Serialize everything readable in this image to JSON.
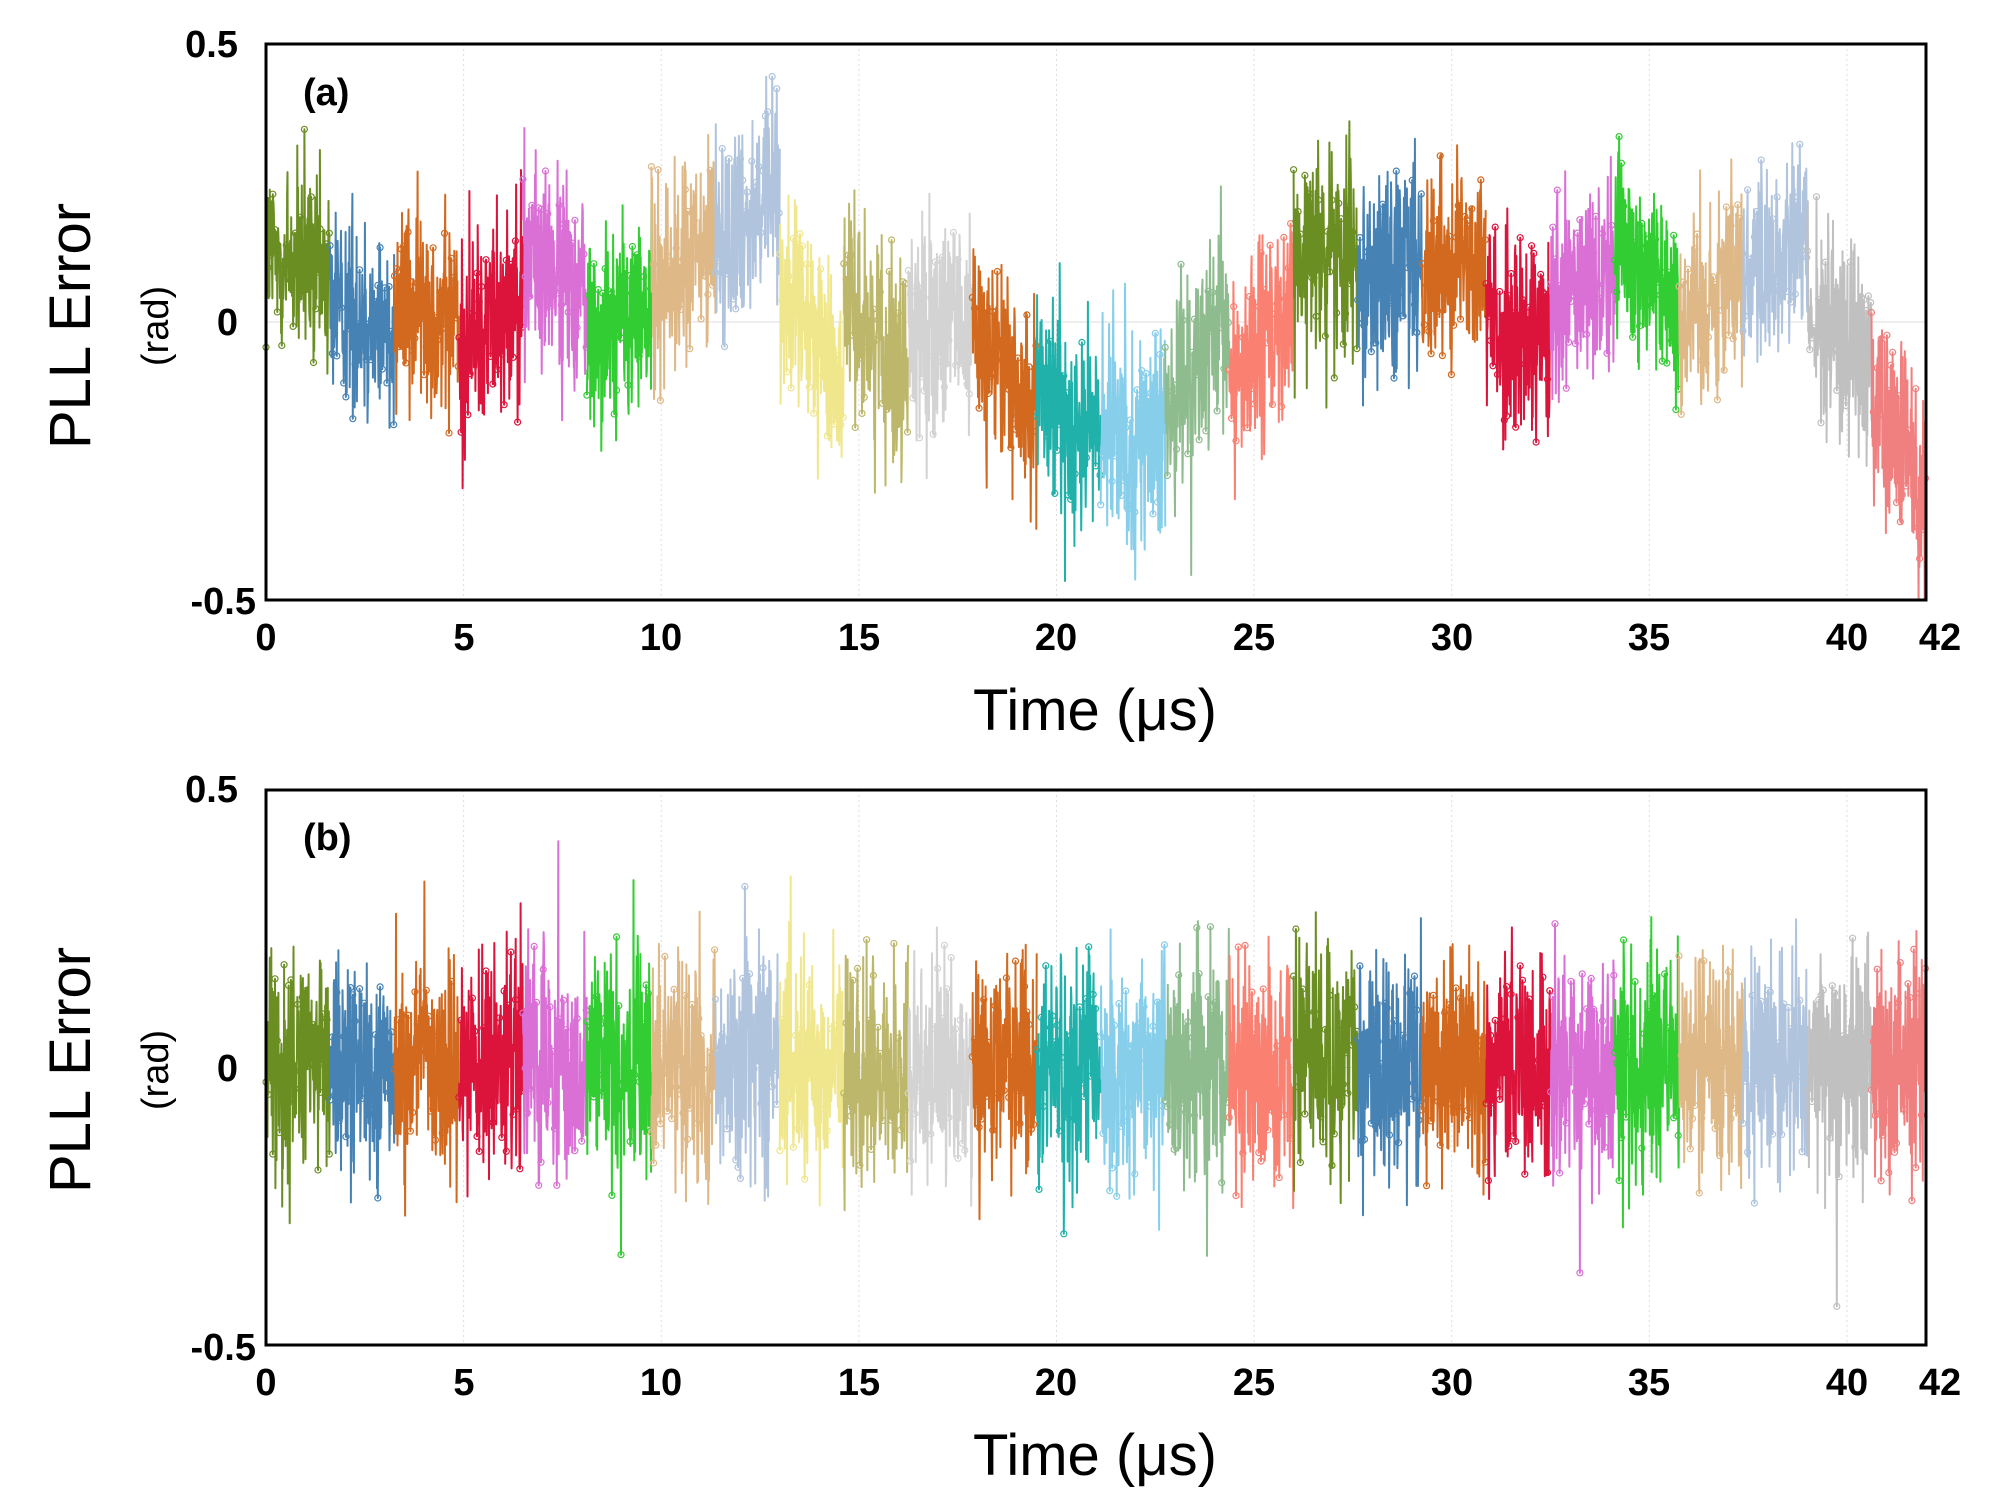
{
  "chart_data": [
    {
      "type": "line",
      "panel_label": "(a)",
      "xlabel": "Time (μs)",
      "ylabel": "PLL Error",
      "ylabel_unit": "(rad)",
      "xlim": [
        0,
        42
      ],
      "ylim": [
        -0.5,
        0.5
      ],
      "x_ticks": [
        0,
        5,
        10,
        15,
        20,
        25,
        30,
        35,
        40,
        42
      ],
      "x_tick_labels": [
        "0",
        "5",
        "10",
        "15",
        "20",
        "25",
        "30",
        "35",
        "40",
        "42"
      ],
      "y_ticks": [
        -0.5,
        0,
        0.5
      ],
      "y_tick_labels": [
        "-0.5",
        "0",
        "0.5"
      ],
      "grid": true,
      "noise_amplitude": 0.09,
      "segments": [
        {
          "start": 0.0,
          "end": 1.62,
          "color": "#6b8e23",
          "mean_start": 0.12,
          "mean_end": 0.08
        },
        {
          "start": 1.62,
          "end": 3.25,
          "color": "#4682b4",
          "mean_start": 0.04,
          "mean_end": -0.02
        },
        {
          "start": 3.25,
          "end": 4.88,
          "color": "#d2691e",
          "mean_start": 0.05,
          "mean_end": 0.0
        },
        {
          "start": 4.88,
          "end": 6.5,
          "color": "#dc143c",
          "mean_start": -0.05,
          "mean_end": 0.08
        },
        {
          "start": 6.5,
          "end": 8.12,
          "color": "#da70d6",
          "mean_start": 0.12,
          "mean_end": 0.05
        },
        {
          "start": 8.12,
          "end": 9.75,
          "color": "#32cd32",
          "mean_start": -0.02,
          "mean_end": 0.02
        },
        {
          "start": 9.75,
          "end": 11.37,
          "color": "#deb887",
          "mean_start": 0.05,
          "mean_end": 0.15
        },
        {
          "start": 11.37,
          "end": 13.0,
          "color": "#b0c4de",
          "mean_start": 0.15,
          "mean_end": 0.25
        },
        {
          "start": 13.0,
          "end": 14.62,
          "color": "#f0e68c",
          "mean_start": 0.05,
          "mean_end": -0.1
        },
        {
          "start": 14.62,
          "end": 16.25,
          "color": "#bdb76b",
          "mean_start": 0.05,
          "mean_end": -0.1
        },
        {
          "start": 16.25,
          "end": 17.87,
          "color": "#d3d3d3",
          "mean_start": 0.0,
          "mean_end": -0.02
        },
        {
          "start": 17.87,
          "end": 19.5,
          "color": "#d2691e",
          "mean_start": 0.0,
          "mean_end": -0.18
        },
        {
          "start": 19.5,
          "end": 21.12,
          "color": "#20b2aa",
          "mean_start": -0.15,
          "mean_end": -0.2
        },
        {
          "start": 21.12,
          "end": 22.75,
          "color": "#87ceeb",
          "mean_start": -0.2,
          "mean_end": -0.22
        },
        {
          "start": 22.75,
          "end": 24.37,
          "color": "#8fbc8f",
          "mean_start": -0.15,
          "mean_end": -0.02
        },
        {
          "start": 24.37,
          "end": 26.0,
          "color": "#fa8072",
          "mean_start": -0.1,
          "mean_end": 0.02
        },
        {
          "start": 26.0,
          "end": 27.62,
          "color": "#6b8e23",
          "mean_start": 0.1,
          "mean_end": 0.15
        },
        {
          "start": 27.62,
          "end": 29.25,
          "color": "#4682b4",
          "mean_start": 0.08,
          "mean_end": 0.1
        },
        {
          "start": 29.25,
          "end": 30.87,
          "color": "#d2691e",
          "mean_start": 0.1,
          "mean_end": 0.15
        },
        {
          "start": 30.87,
          "end": 32.5,
          "color": "#dc143c",
          "mean_start": 0.0,
          "mean_end": -0.05
        },
        {
          "start": 32.5,
          "end": 34.12,
          "color": "#da70d6",
          "mean_start": 0.02,
          "mean_end": 0.1
        },
        {
          "start": 34.12,
          "end": 35.75,
          "color": "#32cd32",
          "mean_start": 0.15,
          "mean_end": 0.05
        },
        {
          "start": 35.75,
          "end": 37.37,
          "color": "#deb887",
          "mean_start": 0.0,
          "mean_end": 0.1
        },
        {
          "start": 37.37,
          "end": 39.0,
          "color": "#b0c4de",
          "mean_start": 0.08,
          "mean_end": 0.15
        },
        {
          "start": 39.0,
          "end": 40.62,
          "color": "#c0c0c0",
          "mean_start": 0.0,
          "mean_end": -0.05
        },
        {
          "start": 40.62,
          "end": 42.0,
          "color": "#f08080",
          "mean_start": -0.15,
          "mean_end": -0.3
        }
      ]
    },
    {
      "type": "line",
      "panel_label": "(b)",
      "xlabel": "Time (μs)",
      "ylabel": "PLL Error",
      "ylabel_unit": "(rad)",
      "xlim": [
        0,
        42
      ],
      "ylim": [
        -0.5,
        0.5
      ],
      "x_ticks": [
        0,
        5,
        10,
        15,
        20,
        25,
        30,
        35,
        40,
        42
      ],
      "x_tick_labels": [
        "0",
        "5",
        "10",
        "15",
        "20",
        "25",
        "30",
        "35",
        "40",
        "42"
      ],
      "y_ticks": [
        -0.5,
        0,
        0.5
      ],
      "y_tick_labels": [
        "-0.5",
        "0",
        "0.5"
      ],
      "grid": true,
      "noise_amplitude": 0.1,
      "segments": [
        {
          "start": 0.0,
          "end": 1.62,
          "color": "#6b8e23",
          "mean_start": 0.0,
          "mean_end": 0.0
        },
        {
          "start": 1.62,
          "end": 3.25,
          "color": "#4682b4",
          "mean_start": 0.0,
          "mean_end": 0.0
        },
        {
          "start": 3.25,
          "end": 4.88,
          "color": "#d2691e",
          "mean_start": 0.0,
          "mean_end": 0.0
        },
        {
          "start": 4.88,
          "end": 6.5,
          "color": "#dc143c",
          "mean_start": 0.0,
          "mean_end": 0.0
        },
        {
          "start": 6.5,
          "end": 8.12,
          "color": "#da70d6",
          "mean_start": 0.0,
          "mean_end": 0.0
        },
        {
          "start": 8.12,
          "end": 9.75,
          "color": "#32cd32",
          "mean_start": 0.0,
          "mean_end": 0.0
        },
        {
          "start": 9.75,
          "end": 11.37,
          "color": "#deb887",
          "mean_start": 0.0,
          "mean_end": 0.0
        },
        {
          "start": 11.37,
          "end": 13.0,
          "color": "#b0c4de",
          "mean_start": 0.0,
          "mean_end": 0.0
        },
        {
          "start": 13.0,
          "end": 14.62,
          "color": "#f0e68c",
          "mean_start": 0.0,
          "mean_end": 0.0
        },
        {
          "start": 14.62,
          "end": 16.25,
          "color": "#bdb76b",
          "mean_start": 0.0,
          "mean_end": 0.0
        },
        {
          "start": 16.25,
          "end": 17.87,
          "color": "#d3d3d3",
          "mean_start": 0.0,
          "mean_end": 0.0
        },
        {
          "start": 17.87,
          "end": 19.5,
          "color": "#d2691e",
          "mean_start": 0.0,
          "mean_end": 0.0
        },
        {
          "start": 19.5,
          "end": 21.12,
          "color": "#20b2aa",
          "mean_start": 0.0,
          "mean_end": 0.0
        },
        {
          "start": 21.12,
          "end": 22.75,
          "color": "#87ceeb",
          "mean_start": 0.0,
          "mean_end": 0.0
        },
        {
          "start": 22.75,
          "end": 24.37,
          "color": "#8fbc8f",
          "mean_start": 0.0,
          "mean_end": 0.0
        },
        {
          "start": 24.37,
          "end": 26.0,
          "color": "#fa8072",
          "mean_start": 0.0,
          "mean_end": 0.0
        },
        {
          "start": 26.0,
          "end": 27.62,
          "color": "#6b8e23",
          "mean_start": 0.0,
          "mean_end": 0.0
        },
        {
          "start": 27.62,
          "end": 29.25,
          "color": "#4682b4",
          "mean_start": 0.0,
          "mean_end": 0.0
        },
        {
          "start": 29.25,
          "end": 30.87,
          "color": "#d2691e",
          "mean_start": 0.0,
          "mean_end": 0.0
        },
        {
          "start": 30.87,
          "end": 32.5,
          "color": "#dc143c",
          "mean_start": 0.0,
          "mean_end": 0.0
        },
        {
          "start": 32.5,
          "end": 34.12,
          "color": "#da70d6",
          "mean_start": 0.0,
          "mean_end": 0.0
        },
        {
          "start": 34.12,
          "end": 35.75,
          "color": "#32cd32",
          "mean_start": 0.0,
          "mean_end": 0.0
        },
        {
          "start": 35.75,
          "end": 37.37,
          "color": "#deb887",
          "mean_start": 0.0,
          "mean_end": 0.0
        },
        {
          "start": 37.37,
          "end": 39.0,
          "color": "#b0c4de",
          "mean_start": 0.0,
          "mean_end": 0.0
        },
        {
          "start": 39.0,
          "end": 40.62,
          "color": "#c0c0c0",
          "mean_start": 0.0,
          "mean_end": 0.0
        },
        {
          "start": 40.62,
          "end": 42.0,
          "color": "#f08080",
          "mean_start": 0.0,
          "mean_end": 0.0
        }
      ]
    }
  ]
}
